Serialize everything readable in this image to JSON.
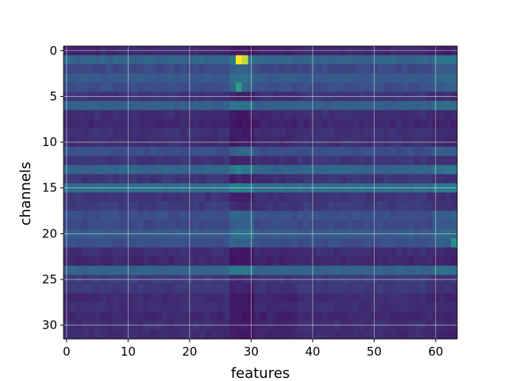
{
  "chart_data": {
    "type": "heatmap",
    "title": "",
    "xlabel": "features",
    "ylabel": "channels",
    "xlim": [
      -0.5,
      63.5
    ],
    "ylim": [
      31.5,
      -0.5
    ],
    "x_ticks": [
      0,
      10,
      20,
      30,
      40,
      50,
      60
    ],
    "y_ticks": [
      0,
      5,
      10,
      15,
      20,
      25,
      30
    ],
    "grid": true,
    "colormap": "viridis",
    "value_range": [
      0,
      1
    ],
    "n_rows": 32,
    "n_cols": 64,
    "row_baseline": [
      0.12,
      0.32,
      0.22,
      0.28,
      0.24,
      0.16,
      0.3,
      0.14,
      0.12,
      0.15,
      0.14,
      0.24,
      0.16,
      0.32,
      0.16,
      0.36,
      0.16,
      0.18,
      0.24,
      0.22,
      0.28,
      0.24,
      0.14,
      0.12,
      0.32,
      0.18,
      0.17,
      0.13,
      0.14,
      0.12,
      0.14,
      0.13
    ],
    "feature_profile": {
      "note": "per-feature modulation near feature 28-29 and 60-63",
      "peak_cells": [
        {
          "row": 1,
          "col": 28,
          "value": 1.0
        },
        {
          "row": 1,
          "col": 29,
          "value": 0.9
        },
        {
          "row": 4,
          "col": 28,
          "value": 0.55
        },
        {
          "row": 13,
          "col": 28,
          "value": 0.45
        },
        {
          "row": 21,
          "col": 63,
          "value": 0.5
        }
      ]
    },
    "colors": {
      "low": "#440154",
      "mid": "#21918c",
      "high": "#fde725",
      "grid": "#ffffff"
    }
  }
}
